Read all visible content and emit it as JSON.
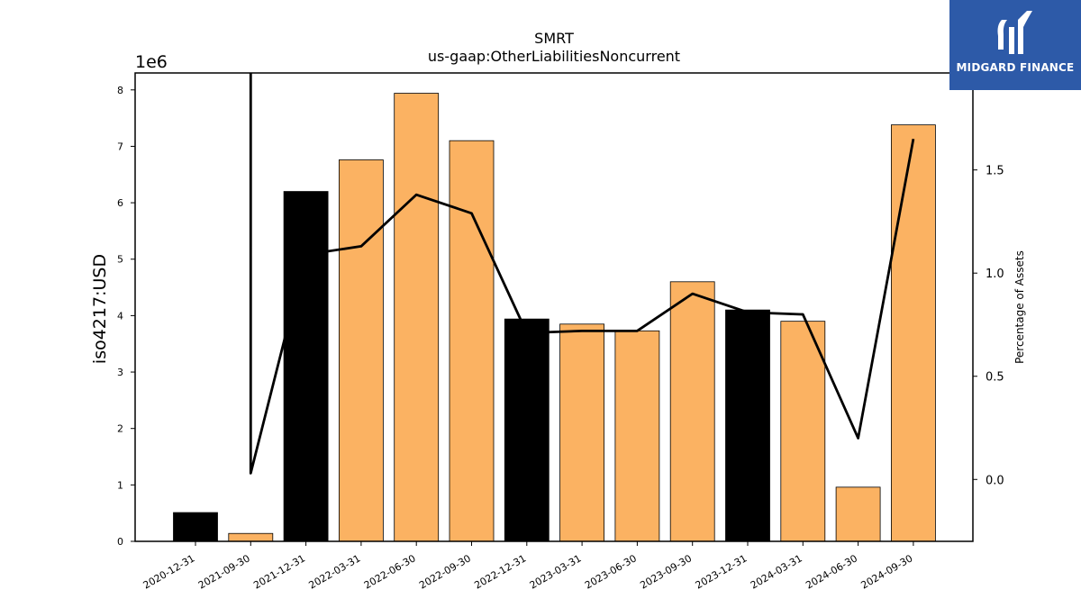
{
  "brand": {
    "name": "MIDGARD FINANCE",
    "color": "#2d5aa8"
  },
  "chart_data": {
    "type": "bar",
    "title": "SMRT",
    "subtitle": "us-gaap:OtherLiabilitiesNoncurrent",
    "ylabel": "iso4217:USD",
    "y_offset_label": "1e6",
    "y2label": "Percentage of Assets",
    "categories": [
      "2020-12-31",
      "2021-09-30",
      "2021-12-31",
      "2022-03-31",
      "2022-06-30",
      "2022-09-30",
      "2022-12-31",
      "2023-03-31",
      "2023-06-30",
      "2023-09-30",
      "2023-12-31",
      "2024-03-31",
      "2024-06-30",
      "2024-09-30"
    ],
    "values": [
      510000,
      140000,
      6200000,
      6760000,
      7940000,
      7100000,
      3940000,
      3850000,
      3730000,
      4600000,
      4100000,
      3900000,
      960000,
      7380000
    ],
    "bar_colors": [
      "#000000",
      "#fbb262",
      "#000000",
      "#fbb262",
      "#fbb262",
      "#fbb262",
      "#000000",
      "#fbb262",
      "#fbb262",
      "#fbb262",
      "#000000",
      "#fbb262",
      "#fbb262",
      "#fbb262"
    ],
    "ylim": [
      0,
      8300000
    ],
    "yticks": [
      0,
      1,
      2,
      3,
      4,
      5,
      6,
      7,
      8
    ],
    "y2lim": [
      -0.3,
      1.97
    ],
    "y2ticks": [
      "0.0",
      "0.5",
      "1.0",
      "1.5"
    ],
    "series": [
      {
        "values": [
          null,
          0.03,
          1.09,
          1.13,
          1.38,
          1.29,
          0.71,
          0.72,
          0.72,
          0.9,
          0.81,
          0.8,
          0.2,
          1.65
        ]
      }
    ],
    "line_spike_at": "2021-09-30",
    "grid": false
  }
}
